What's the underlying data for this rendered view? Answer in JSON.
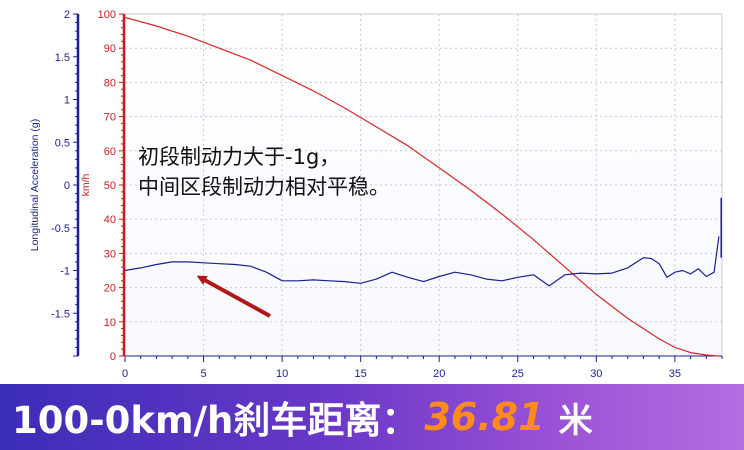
{
  "chart_data": {
    "type": "line",
    "xlabel": "",
    "xlim": [
      0,
      38
    ],
    "xticks": [
      0,
      5,
      10,
      15,
      20,
      25,
      30,
      35
    ],
    "y_left": {
      "label": "Longitudinal Acceleration (g)",
      "lim": [
        -2,
        2
      ],
      "ticks": [
        2,
        1.5,
        1,
        0.5,
        0,
        -0.5,
        -1,
        -1.5
      ],
      "tick_labels": [
        "2",
        "1.5",
        "1",
        "0.5",
        "0",
        "-0.5",
        "-1",
        "-1.5"
      ]
    },
    "y_right": {
      "label": "km/h",
      "lim": [
        0,
        100
      ],
      "ticks": [
        100,
        90,
        80,
        70,
        60,
        50,
        40,
        30,
        20,
        10,
        0
      ],
      "tick_labels": [
        "100",
        "90",
        "80",
        "70",
        "60",
        "50",
        "40",
        "30",
        "20",
        "10",
        "0"
      ]
    },
    "grid": true,
    "series": [
      {
        "axis": "right",
        "color": "#d42828",
        "x": [
          0,
          2,
          4,
          6,
          8,
          10,
          12,
          14,
          16,
          18,
          20,
          22,
          24,
          26,
          28,
          30,
          32,
          34,
          35,
          36,
          36.5,
          37,
          37.5,
          37.8
        ],
        "y": [
          99,
          96.5,
          93.5,
          90,
          86.5,
          82,
          77.5,
          72.5,
          67,
          61.5,
          55,
          48.5,
          41.5,
          34,
          26,
          18,
          11,
          5,
          2.5,
          1,
          0.6,
          0.3,
          0.1,
          0
        ]
      },
      {
        "axis": "left",
        "color": "#1c1f8a",
        "x": [
          0,
          1,
          2,
          3,
          4,
          5,
          6,
          7,
          8,
          9,
          10,
          11,
          12,
          13,
          14,
          15,
          16,
          17,
          18,
          19,
          20,
          21,
          22,
          23,
          24,
          25,
          26,
          27,
          28,
          29,
          30,
          31,
          32,
          33,
          33.5,
          34,
          34.5,
          35,
          35.5,
          36,
          36.5,
          37,
          37.5,
          37.8
        ],
        "y": [
          -1.0,
          -0.97,
          -0.93,
          -0.9,
          -0.9,
          -0.91,
          -0.92,
          -0.93,
          -0.95,
          -1.02,
          -1.12,
          -1.12,
          -1.11,
          -1.12,
          -1.13,
          -1.15,
          -1.1,
          -1.02,
          -1.08,
          -1.13,
          -1.07,
          -1.02,
          -1.05,
          -1.1,
          -1.12,
          -1.08,
          -1.05,
          -1.18,
          -1.05,
          -1.03,
          -1.04,
          -1.03,
          -0.97,
          -0.85,
          -0.86,
          -0.92,
          -1.08,
          -1.02,
          -1.0,
          -1.04,
          -0.98,
          -1.07,
          -1.02,
          -0.6
        ]
      }
    ],
    "annotation": {
      "lines": [
        "初段制动力大于-1g，",
        "中间区段制动力相对平稳。"
      ],
      "arrow_to": [
        4.5,
        -1.0
      ]
    }
  },
  "banner": {
    "label": "100-0km/h刹车距离：",
    "value": "36.81",
    "unit": "米"
  }
}
